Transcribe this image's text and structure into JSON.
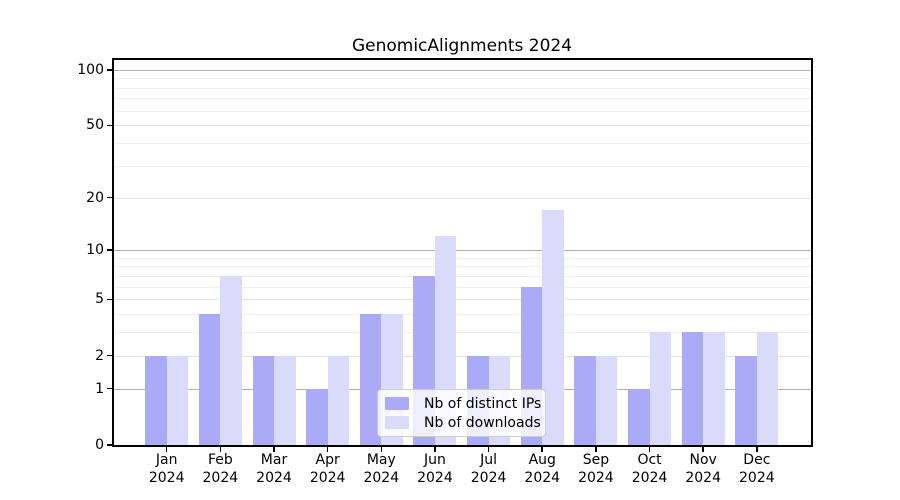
{
  "chart_data": {
    "type": "bar",
    "title": "GenomicAlignments 2024",
    "categories": [
      "Jan",
      "Feb",
      "Mar",
      "Apr",
      "May",
      "Jun",
      "Jul",
      "Aug",
      "Sep",
      "Oct",
      "Nov",
      "Dec"
    ],
    "x_tick_second_line": "2024",
    "series": [
      {
        "name": "Nb of distinct IPs",
        "color": "#aaaaf7",
        "values": [
          2,
          4,
          2,
          1,
          4,
          7,
          2,
          6,
          2,
          1,
          3,
          2
        ]
      },
      {
        "name": "Nb of downloads",
        "color": "#dadafb",
        "values": [
          2,
          7,
          2,
          2,
          4,
          12,
          2,
          17,
          2,
          3,
          3,
          3
        ]
      }
    ],
    "y_axis": {
      "scale": "log1p",
      "tick_values": [
        0,
        1,
        2,
        5,
        10,
        20,
        50,
        100
      ],
      "minor_gridline_values": [
        3,
        4,
        6,
        7,
        8,
        9,
        30,
        40,
        60,
        70,
        80,
        90
      ],
      "decade_gridline_values": [
        1,
        10,
        100
      ],
      "max": 113
    },
    "grid": true,
    "legend_position": "lower-center-inside",
    "colors": {
      "decade_gridline": "#b3b3b3",
      "labeled_gridline": "#e2e2e2",
      "minor_gridline": "#efefef",
      "axis": "#000000",
      "text": "#000000"
    }
  }
}
